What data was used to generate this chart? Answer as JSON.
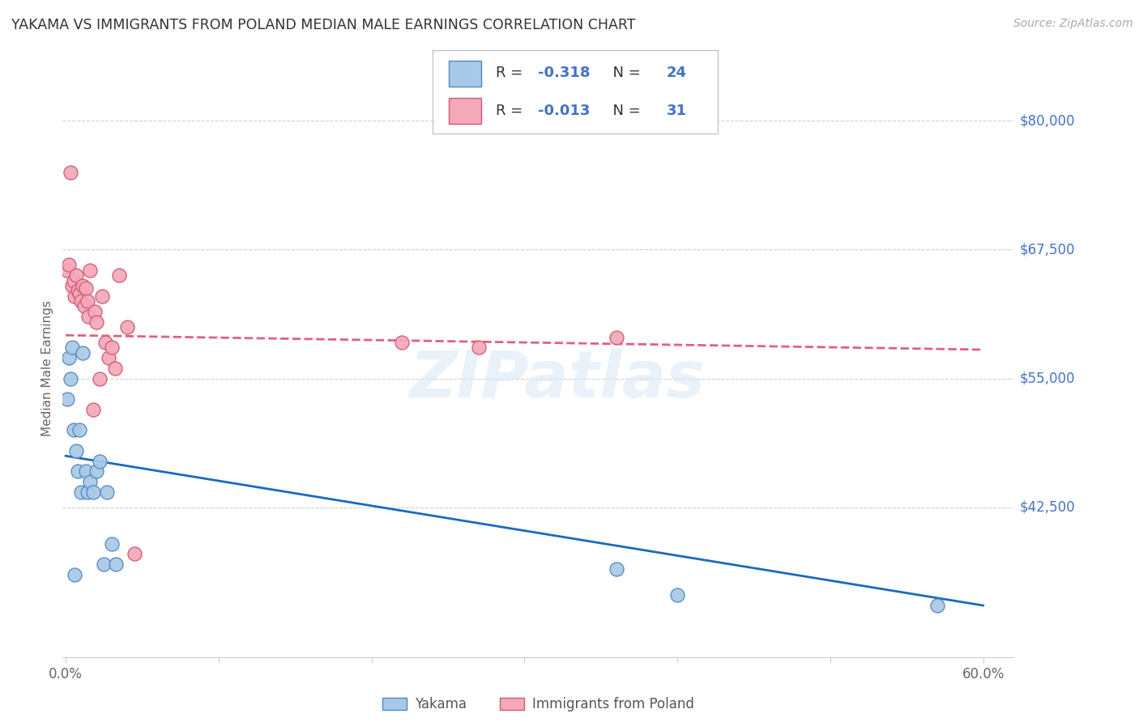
{
  "title": "YAKAMA VS IMMIGRANTS FROM POLAND MEDIAN MALE EARNINGS CORRELATION CHART",
  "source": "Source: ZipAtlas.com",
  "ylabel": "Median Male Earnings",
  "yticks": [
    42500,
    55000,
    67500,
    80000
  ],
  "ytick_labels": [
    "$42,500",
    "$55,000",
    "$67,500",
    "$80,000"
  ],
  "ymin": 28000,
  "ymax": 84000,
  "xmin": -0.002,
  "xmax": 0.62,
  "yakama_x": [
    0.001,
    0.002,
    0.003,
    0.004,
    0.005,
    0.006,
    0.007,
    0.008,
    0.009,
    0.01,
    0.011,
    0.013,
    0.014,
    0.016,
    0.018,
    0.02,
    0.022,
    0.025,
    0.027,
    0.03,
    0.033,
    0.36,
    0.4,
    0.57
  ],
  "yakama_y": [
    53000,
    57000,
    55000,
    58000,
    50000,
    36000,
    48000,
    46000,
    50000,
    44000,
    57500,
    46000,
    44000,
    45000,
    44000,
    46000,
    47000,
    37000,
    44000,
    39000,
    37000,
    36500,
    34000,
    33000
  ],
  "poland_x": [
    0.001,
    0.002,
    0.003,
    0.004,
    0.005,
    0.006,
    0.007,
    0.008,
    0.009,
    0.01,
    0.011,
    0.012,
    0.013,
    0.014,
    0.015,
    0.016,
    0.018,
    0.019,
    0.02,
    0.022,
    0.024,
    0.026,
    0.028,
    0.03,
    0.032,
    0.035,
    0.04,
    0.045,
    0.22,
    0.27,
    0.36
  ],
  "poland_y": [
    65500,
    66000,
    75000,
    64000,
    64500,
    63000,
    65000,
    63500,
    63200,
    62500,
    64000,
    62000,
    63800,
    62500,
    61000,
    65500,
    52000,
    61500,
    60500,
    55000,
    63000,
    58500,
    57000,
    58000,
    56000,
    65000,
    60000,
    38000,
    58500,
    58000,
    59000
  ],
  "yakama_color": "#a8c8e8",
  "yakama_edge": "#5588bb",
  "poland_color": "#f4a8b8",
  "poland_edge": "#d05878",
  "scatter_size": 150,
  "yakama_line_x0": 0.0,
  "yakama_line_x1": 0.6,
  "yakama_line_y0": 47500,
  "yakama_line_y1": 33000,
  "poland_line_x0": 0.0,
  "poland_line_x1": 0.6,
  "poland_line_y0": 59200,
  "poland_line_y1": 57800,
  "yakama_line_color": "#1a6abf",
  "poland_line_color": "#e06080",
  "grid_color": "#d0d0d0",
  "ytick_color": "#4472c4",
  "watermark": "ZIPatlas",
  "legend_r1": "R = -0.318   N = 24",
  "legend_r2": "R = -0.013   N = 31",
  "legend_label1": "Yakama",
  "legend_label2": "Immigrants from Poland",
  "background_color": "#ffffff",
  "title_fontsize": 12.5,
  "source_color": "#aaaaaa",
  "axis_label_color": "#666666"
}
